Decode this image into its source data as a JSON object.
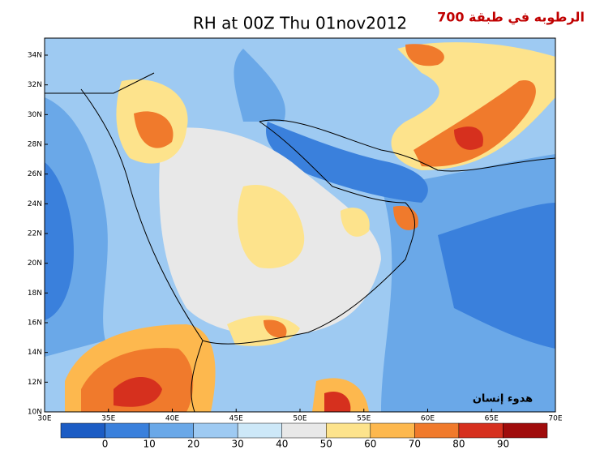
{
  "title": "RH at 00Z Thu 01nov2012",
  "title_ar": "الرطوبه في طبقة 700",
  "credit": "هدوء إنسان",
  "lon_labels": [
    "30E",
    "35E",
    "40E",
    "45E",
    "50E",
    "55E",
    "60E",
    "65E",
    "70E"
  ],
  "lat_labels": [
    "10N",
    "12N",
    "14N",
    "16N",
    "18N",
    "20N",
    "22N",
    "24N",
    "26N",
    "28N",
    "30N",
    "32N",
    "34N"
  ],
  "colorbar": {
    "levels": [
      0,
      10,
      20,
      30,
      40,
      50,
      60,
      70,
      80,
      90
    ],
    "colors": [
      "#1c5cc4",
      "#3a80dc",
      "#6aa8e8",
      "#9ecaf2",
      "#cde8f8",
      "#e8e8e8",
      "#fde38c",
      "#fdb84e",
      "#f07a2c",
      "#d6301e",
      "#a00c0c"
    ]
  }
}
